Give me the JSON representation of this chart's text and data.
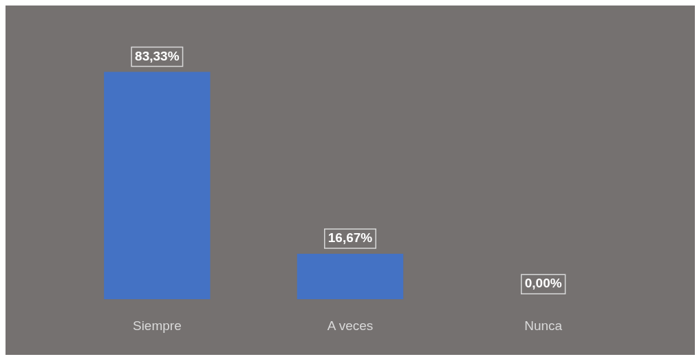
{
  "chart_data": {
    "type": "bar",
    "categories": [
      "Siempre",
      "A veces",
      "Nunca"
    ],
    "values": [
      83.33,
      16.67,
      0
    ],
    "value_labels": [
      "83,33%",
      "16,67%",
      "0,00%"
    ],
    "color": "#4472c4",
    "grid": false,
    "legend": false,
    "tick_labels": "x"
  }
}
